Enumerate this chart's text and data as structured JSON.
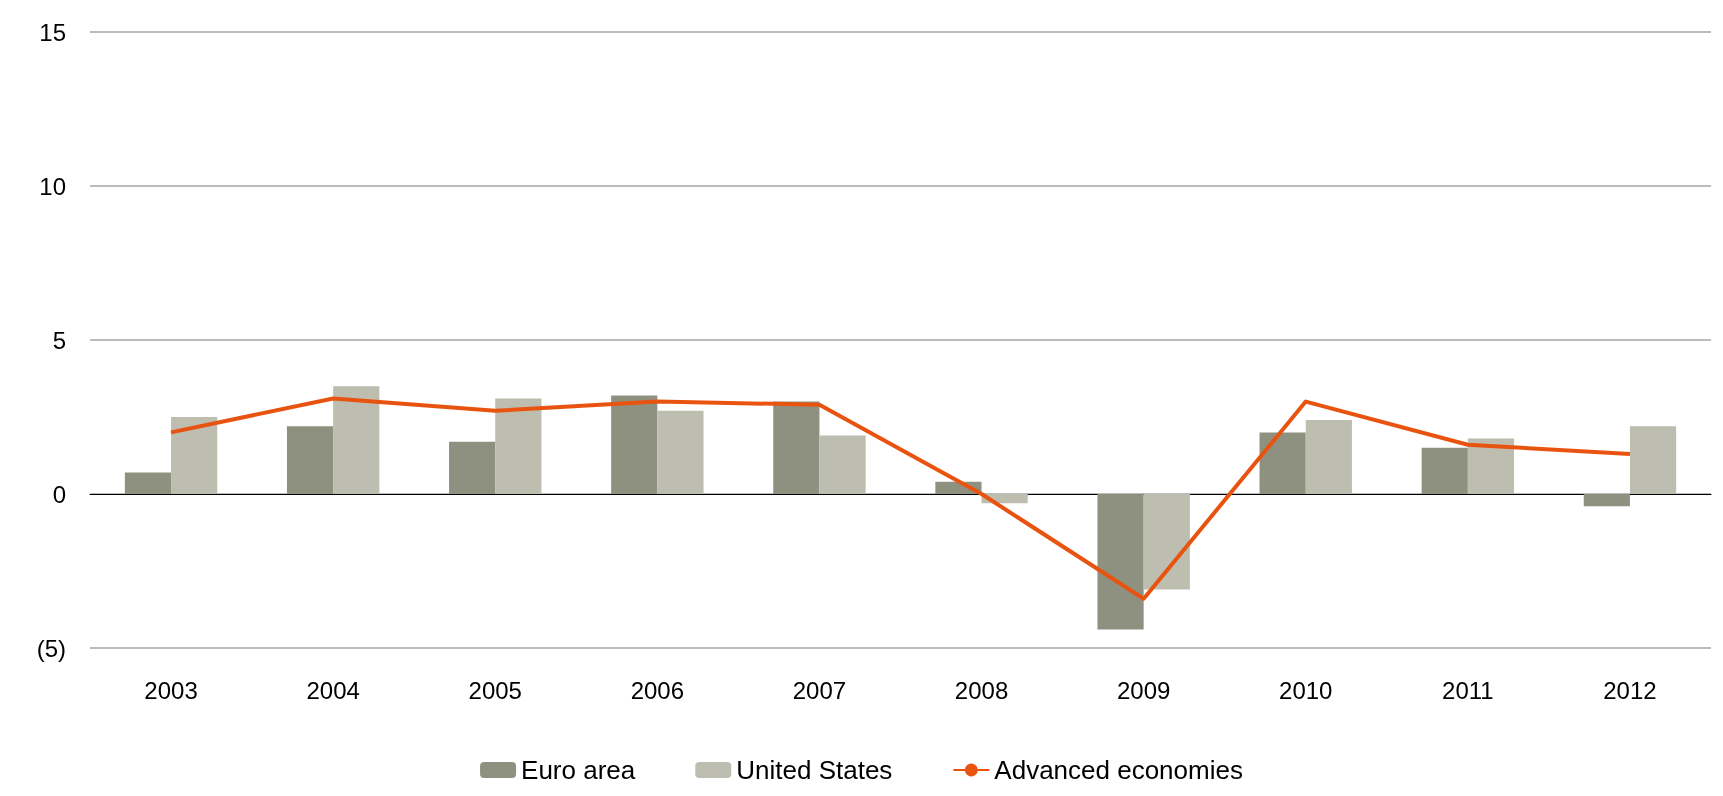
{
  "chart_data": {
    "type": "bar",
    "categories": [
      "2003",
      "2004",
      "2005",
      "2006",
      "2007",
      "2008",
      "2009",
      "2010",
      "2011",
      "2012"
    ],
    "series": [
      {
        "name": "Euro area",
        "color": "#8f9180",
        "values": [
          0.7,
          2.2,
          1.7,
          3.2,
          3.0,
          0.4,
          -4.4,
          2.0,
          1.5,
          -0.4
        ]
      },
      {
        "name": "United States",
        "color": "#bdbdb0",
        "values": [
          2.5,
          3.5,
          3.1,
          2.7,
          1.9,
          -0.3,
          -3.1,
          2.4,
          1.8,
          2.2
        ]
      },
      {
        "name": "Advanced economies",
        "type": "line",
        "color": "#e8540f",
        "values": [
          2.0,
          3.1,
          2.7,
          3.0,
          2.9,
          0.0,
          -3.4,
          3.0,
          1.6,
          1.3
        ]
      }
    ],
    "ylim": [
      -5,
      15
    ],
    "yticks": [
      {
        "value": -5,
        "label": "(5)"
      },
      0,
      5,
      10,
      15
    ],
    "grid": "y",
    "legend": "bottom",
    "marker": "none",
    "line_style": "solid"
  }
}
